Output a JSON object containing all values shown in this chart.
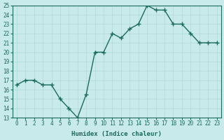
{
  "x": [
    0,
    1,
    2,
    3,
    4,
    5,
    6,
    7,
    8,
    9,
    10,
    11,
    12,
    13,
    14,
    15,
    16,
    17,
    18,
    19,
    20,
    21,
    22,
    23
  ],
  "y": [
    16.5,
    17.0,
    17.0,
    16.5,
    16.5,
    15.0,
    14.0,
    13.0,
    15.5,
    20.0,
    20.0,
    22.0,
    21.5,
    22.5,
    23.0,
    25.0,
    24.5,
    24.5,
    23.0,
    23.0,
    22.0,
    21.0,
    21.0,
    21.0
  ],
  "line_color": "#1a6b5a",
  "marker": "+",
  "markersize": 4,
  "markeredgewidth": 1.0,
  "linewidth": 1.0,
  "xlabel": "Humidex (Indice chaleur)",
  "ylim": [
    13,
    25
  ],
  "xlim": [
    -0.5,
    23.5
  ],
  "yticks": [
    13,
    14,
    15,
    16,
    17,
    18,
    19,
    20,
    21,
    22,
    23,
    24,
    25
  ],
  "xticks": [
    0,
    1,
    2,
    3,
    4,
    5,
    6,
    7,
    8,
    9,
    10,
    11,
    12,
    13,
    14,
    15,
    16,
    17,
    18,
    19,
    20,
    21,
    22,
    23
  ],
  "background_color": "#c8eaea",
  "grid_color": "#b0d8d8",
  "tick_color": "#1a6b5a",
  "label_color": "#1a6b5a",
  "xlabel_fontsize": 6.5,
  "tick_fontsize": 5.5
}
